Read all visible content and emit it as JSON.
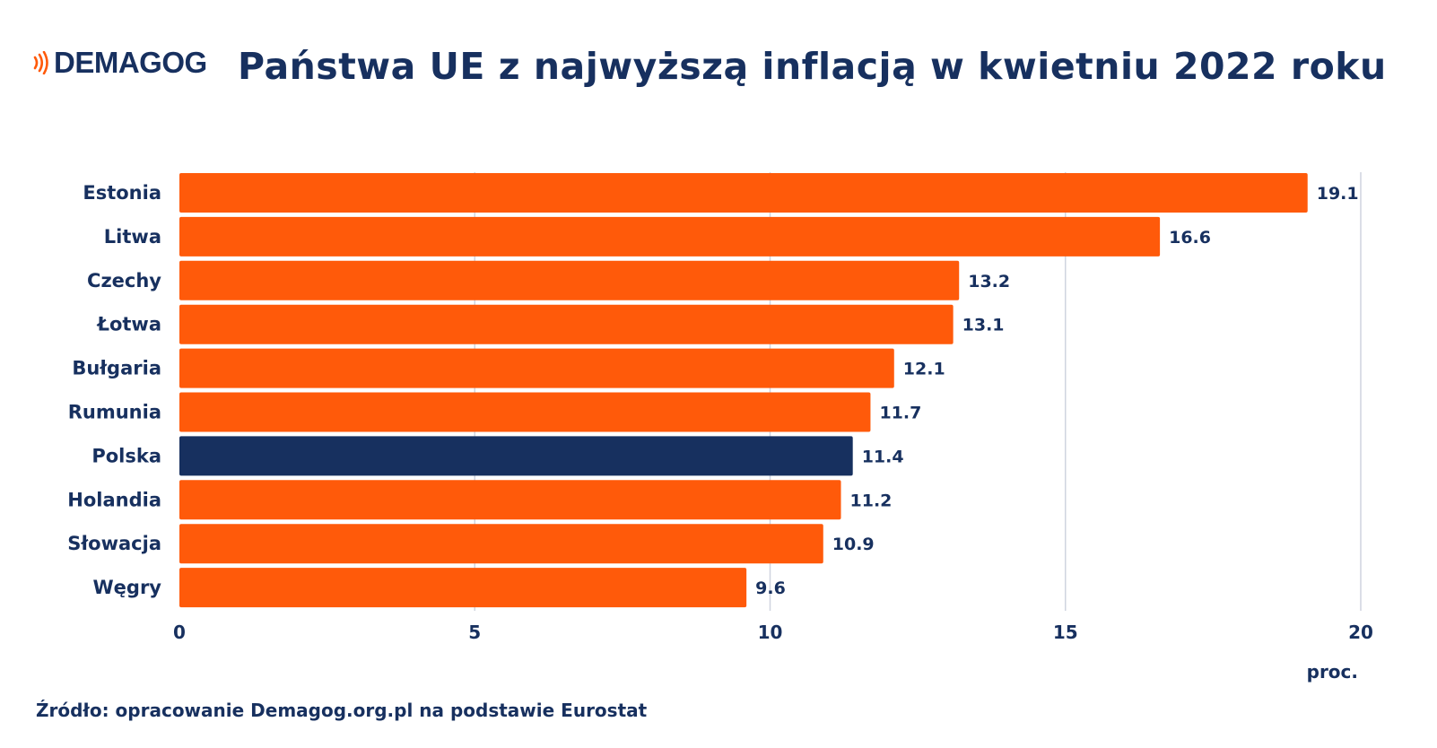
{
  "logo": {
    "text": "DEMAGOG",
    "icon": "sound-waves-icon",
    "icon_color": "#ff5a0a"
  },
  "source": "Źródło: opracowanie Demagog.org.pl na podstawie Eurostat",
  "colors": {
    "bar_default": "#ff5a0a",
    "bar_highlight": "#17305f",
    "text": "#17305f",
    "grid": "#cfd4df"
  },
  "chart_data": {
    "type": "bar",
    "orientation": "horizontal",
    "title": "Państwa UE z najwyższą inflacją w kwietniu 2022 roku",
    "xlabel": "proc.",
    "ylabel": "",
    "categories": [
      "Estonia",
      "Litwa",
      "Czechy",
      "Łotwa",
      "Bułgaria",
      "Rumunia",
      "Polska",
      "Holandia",
      "Słowacja",
      "Węgry"
    ],
    "values": [
      19.1,
      16.6,
      13.2,
      13.1,
      12.1,
      11.7,
      11.4,
      11.2,
      10.9,
      9.6
    ],
    "value_labels": [
      "19.1",
      "16.6",
      "13.2",
      "13.1",
      "12.1",
      "11.7",
      "11.4",
      "11.2",
      "10.9",
      "9.6"
    ],
    "highlight": "Polska",
    "xlim": [
      0,
      20
    ],
    "xticks": [
      0,
      5,
      10,
      15,
      20
    ],
    "grid": "vertical"
  }
}
